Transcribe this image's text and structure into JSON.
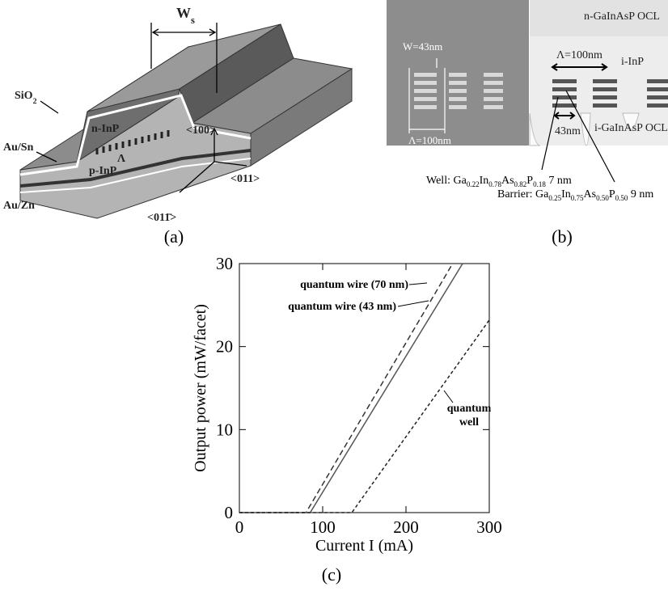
{
  "panel_a": {
    "caption": "(a)",
    "labels": [
      {
        "text": "W",
        "sub": "s"
      },
      {
        "text": "SiO",
        "sub": "2"
      },
      {
        "text": "n-InP"
      },
      {
        "text": "Au/Sn"
      },
      {
        "text": "Λ"
      },
      {
        "text": "p-InP"
      },
      {
        "text": "<100>"
      },
      {
        "text": "<011>"
      },
      {
        "text": "<011̄>"
      },
      {
        "text": "Au/Zn"
      }
    ]
  },
  "panel_b": {
    "caption": "(b)",
    "sem_labels": [
      "W=43nm",
      "Λ=100nm"
    ],
    "schematic_labels": [
      "n-GaInAsP OCL",
      "Λ=100nm",
      "i-InP",
      "43nm",
      "i-GaInAsP OCL"
    ],
    "well_formula": [
      "Well: Ga",
      "0.22",
      "In",
      "0.78",
      "As",
      "0.82",
      "P",
      "0.18",
      "  7 nm"
    ],
    "barrier_formula": [
      "Barrier: Ga",
      "0.25",
      "In",
      "0.75",
      "As",
      "0.50",
      "P",
      "0.50",
      "  9 nm"
    ]
  },
  "chart_data": {
    "type": "line",
    "caption": "(c)",
    "xlabel": "Current I (mA)",
    "ylabel": "Output power (mW/facet)",
    "xlim": [
      0,
      300
    ],
    "xticks": [
      0,
      100,
      200,
      300
    ],
    "ylim": [
      0,
      30
    ],
    "yticks": [
      0,
      10,
      20,
      30
    ],
    "series": [
      {
        "name": "quantum wire (70 nm)",
        "color": "#333333",
        "style": "dashed",
        "x": [
          0,
          80,
          256
        ],
        "values": [
          0,
          0,
          30
        ]
      },
      {
        "name": "quantum wire (43 nm)",
        "color": "#555555",
        "style": "solid",
        "x": [
          0,
          85,
          268
        ],
        "values": [
          0,
          0,
          30
        ]
      },
      {
        "name": "quantum well",
        "color": "#222222",
        "style": "dotted",
        "x": [
          0,
          135,
          300
        ],
        "values": [
          0,
          0,
          23.2
        ]
      }
    ]
  }
}
